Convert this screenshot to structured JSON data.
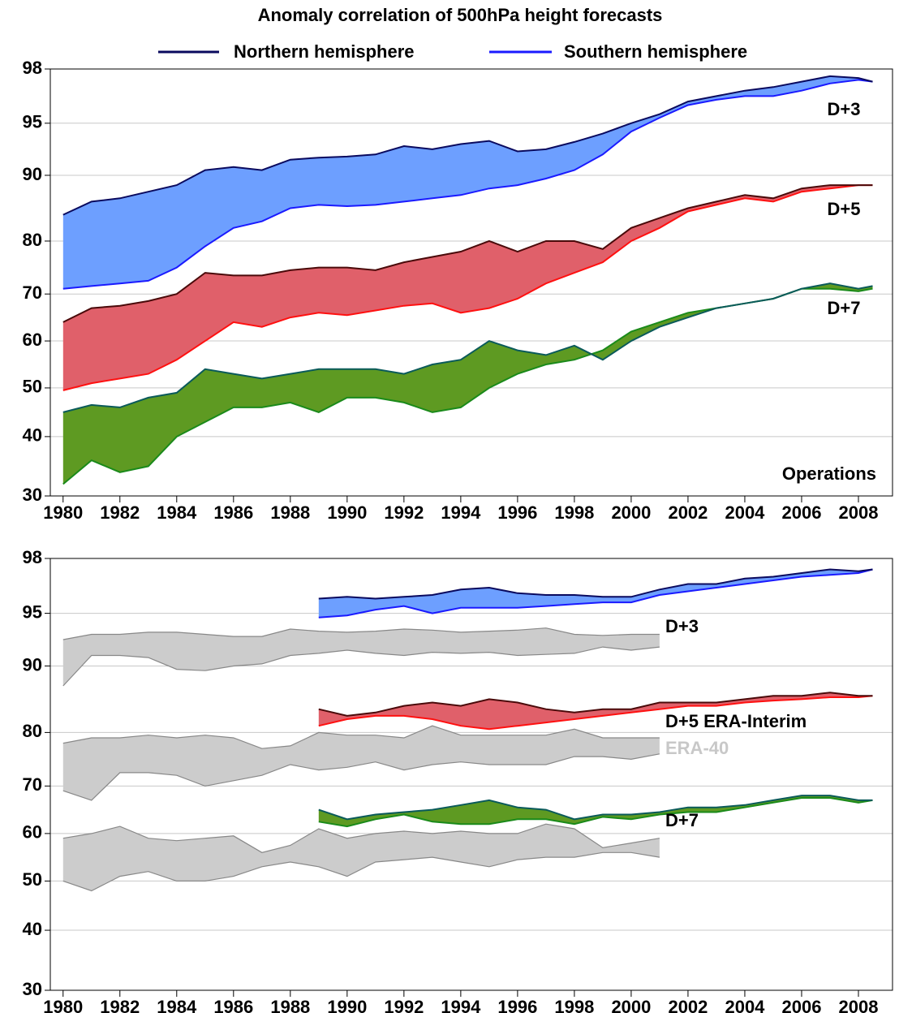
{
  "chart_data": [
    {
      "type": "band",
      "title": "Anomaly correlation of 500hPa height forecasts",
      "annotation": "Operations",
      "x": [
        1980,
        1981,
        1982,
        1983,
        1984,
        1985,
        1986,
        1987,
        1988,
        1989,
        1990,
        1991,
        1992,
        1993,
        1994,
        1995,
        1996,
        1997,
        1998,
        1999,
        2000,
        2001,
        2002,
        2003,
        2004,
        2005,
        2006,
        2007,
        2008,
        2008.5
      ],
      "xlim": [
        1979.55,
        2009.2
      ],
      "xticks": [
        1980,
        1982,
        1984,
        1986,
        1988,
        1990,
        1992,
        1994,
        1996,
        1998,
        2000,
        2002,
        2004,
        2006,
        2008
      ],
      "ylim": [
        30,
        98
      ],
      "yticks": [
        30,
        40,
        50,
        60,
        70,
        80,
        90,
        95,
        98
      ],
      "grid": true,
      "bands": [
        {
          "label": "D+3",
          "fill": "#6d9fff",
          "upper": {
            "name": "Northern hemisphere",
            "color": "#0a0a5e",
            "values": [
              84,
              86,
              86.5,
              87.5,
              88.5,
              90.5,
              90.8,
              90.5,
              91.5,
              91.7,
              91.8,
              92,
              92.8,
              92.5,
              93,
              93.3,
              92.3,
              92.5,
              93.2,
              94,
              95,
              95.5,
              96.2,
              96.5,
              96.8,
              97,
              97.3,
              97.6,
              97.5,
              97.3
            ]
          },
          "lower": {
            "name": "Southern hemisphere",
            "color": "#1a1aff",
            "values": [
              71,
              71.5,
              72,
              72.5,
              75,
              79,
              82,
              83,
              85,
              85.5,
              85.3,
              85.5,
              86,
              86.5,
              87,
              88,
              88.5,
              89.5,
              90.5,
              92,
              94.2,
              95.3,
              96,
              96.3,
              96.5,
              96.5,
              96.8,
              97.2,
              97.4,
              97.3
            ]
          }
        },
        {
          "label": "D+5",
          "fill": "#e0606a",
          "upper": {
            "color": "#4a0a0a",
            "values": [
              64,
              67,
              67.5,
              68.5,
              70,
              74,
              73.5,
              73.5,
              74.5,
              75,
              75,
              74.5,
              76,
              77,
              78,
              80,
              78,
              80,
              80,
              78.5,
              82,
              83.5,
              85,
              86,
              87,
              86.5,
              88,
              88.5,
              88.5,
              88.5
            ]
          },
          "lower": {
            "color": "#ff1010",
            "values": [
              49.5,
              51,
              52,
              53,
              56,
              60,
              64,
              63,
              65,
              66,
              65.5,
              66.5,
              67.5,
              68,
              66,
              67,
              69,
              72,
              74,
              76,
              80,
              82,
              84.5,
              85.5,
              86.5,
              86,
              87.5,
              88,
              88.5,
              88.5
            ]
          }
        },
        {
          "label": "D+7",
          "fill": "#5e9a22",
          "upper": {
            "color": "#0a5a5a",
            "values": [
              45,
              46.5,
              46,
              48,
              49,
              54,
              53,
              52,
              53,
              54,
              54,
              54,
              53,
              55,
              56,
              60,
              58,
              57,
              59,
              56,
              60,
              63,
              65,
              67,
              68,
              69,
              71,
              72,
              71,
              71.5
            ]
          },
          "lower": {
            "color": "#1a8a1a",
            "values": [
              32,
              36,
              34,
              35,
              40,
              43,
              46,
              46,
              47,
              45,
              48,
              48,
              47,
              45,
              46,
              50,
              53,
              55,
              56,
              58,
              62,
              64,
              66,
              67,
              68,
              69,
              71,
              71,
              70.5,
              71
            ]
          }
        }
      ]
    },
    {
      "type": "band",
      "annotation": "ERA-40",
      "annotation_color": "#c8c8c8",
      "x": [
        1980,
        1981,
        1982,
        1983,
        1984,
        1985,
        1986,
        1987,
        1988,
        1989,
        1990,
        1991,
        1992,
        1993,
        1994,
        1995,
        1996,
        1997,
        1998,
        1999,
        2000,
        2001,
        2002,
        2003,
        2004,
        2005,
        2006,
        2007,
        2008,
        2008.5
      ],
      "xlim": [
        1979.55,
        2009.2
      ],
      "xticks": [
        1980,
        1982,
        1984,
        1986,
        1988,
        1990,
        1992,
        1994,
        1996,
        1998,
        2000,
        2002,
        2004,
        2006,
        2008
      ],
      "ylim": [
        30,
        98
      ],
      "yticks": [
        30,
        40,
        50,
        60,
        70,
        80,
        90,
        95,
        98
      ],
      "grid": true,
      "bands": [
        {
          "fill": "#cccccc",
          "upper": {
            "color": "#888888",
            "values": [
              92.5,
              93,
              93,
              93.2,
              93.2,
              93,
              92.8,
              92.8,
              93.5,
              93.3,
              93.2,
              93.3,
              93.5,
              93.4,
              93.2,
              93.3,
              93.4,
              93.6,
              93,
              92.9,
              93,
              93,
              null,
              null,
              null,
              null,
              null,
              null,
              null,
              null
            ]
          },
          "lower": {
            "color": "#888888",
            "values": [
              87,
              91,
              91,
              90.8,
              89.5,
              89.3,
              90,
              90.2,
              91,
              91.2,
              91.5,
              91.2,
              91,
              91.3,
              91.2,
              91.3,
              91,
              91.1,
              91.2,
              91.8,
              91.5,
              91.8,
              null,
              null,
              null,
              null,
              null,
              null,
              null,
              null
            ]
          }
        },
        {
          "fill": "#cccccc",
          "upper": {
            "color": "#888888",
            "values": [
              78,
              79,
              79,
              79.5,
              79,
              79.5,
              79,
              77,
              77.5,
              80,
              79.5,
              79.5,
              79,
              81,
              79.5,
              79.5,
              79.5,
              79.5,
              80.5,
              79,
              79,
              79,
              null,
              null,
              null,
              null,
              null,
              null,
              null,
              null
            ]
          },
          "lower": {
            "color": "#888888",
            "values": [
              69,
              67,
              72.5,
              72.5,
              72,
              70,
              71,
              72,
              74,
              73,
              73.5,
              74.5,
              73,
              74,
              74.5,
              74,
              74,
              74,
              75.5,
              75.5,
              75,
              76,
              null,
              null,
              null,
              null,
              null,
              null,
              null,
              null
            ]
          }
        },
        {
          "fill": "#cccccc",
          "upper": {
            "color": "#888888",
            "values": [
              59,
              60,
              61.5,
              59,
              58.5,
              59,
              59.5,
              56,
              57.5,
              61,
              59,
              60,
              60.5,
              60,
              60.5,
              60,
              60,
              62,
              61,
              57,
              58,
              59,
              null,
              null,
              null,
              null,
              null,
              null,
              null,
              null
            ]
          },
          "lower": {
            "color": "#888888",
            "values": [
              50,
              48,
              51,
              52,
              50,
              50,
              51,
              53,
              54,
              53,
              51,
              54,
              54.5,
              55,
              54,
              53,
              54.5,
              55,
              55,
              56,
              56,
              55,
              null,
              null,
              null,
              null,
              null,
              null,
              null,
              null
            ]
          }
        },
        {
          "label": "D+3",
          "fill": "#6d9fff",
          "upper": {
            "color": "#0a0a5e",
            "values": [
              null,
              null,
              null,
              null,
              null,
              null,
              null,
              null,
              null,
              95.8,
              95.9,
              95.8,
              95.9,
              96.0,
              96.3,
              96.4,
              96.1,
              96.0,
              96.0,
              95.9,
              95.9,
              96.3,
              96.6,
              96.6,
              96.9,
              97.0,
              97.2,
              97.4,
              97.3,
              97.4
            ]
          },
          "lower": {
            "color": "#1a1aff",
            "values": [
              null,
              null,
              null,
              null,
              null,
              null,
              null,
              null,
              null,
              94.6,
              94.8,
              95.2,
              95.4,
              95.0,
              95.3,
              95.3,
              95.3,
              95.4,
              95.5,
              95.6,
              95.6,
              96.0,
              96.2,
              96.4,
              96.6,
              96.8,
              97.0,
              97.1,
              97.2,
              97.4
            ]
          }
        },
        {
          "label": "D+5 ERA-Interim",
          "fill": "#e0606a",
          "upper": {
            "color": "#4a0a0a",
            "values": [
              null,
              null,
              null,
              null,
              null,
              null,
              null,
              null,
              null,
              83.5,
              82.5,
              83,
              84,
              84.5,
              84,
              85,
              84.5,
              83.5,
              83,
              83.5,
              83.5,
              84.5,
              84.5,
              84.5,
              85,
              85.5,
              85.5,
              86,
              85.5,
              85.5
            ]
          },
          "lower": {
            "color": "#ff1010",
            "values": [
              null,
              null,
              null,
              null,
              null,
              null,
              null,
              null,
              null,
              81,
              82,
              82.5,
              82.5,
              82,
              81,
              80.5,
              81,
              81.5,
              82,
              82.5,
              83,
              83.5,
              84,
              84,
              84.5,
              84.8,
              85,
              85.3,
              85.3,
              85.5
            ]
          }
        },
        {
          "label": "D+7",
          "fill": "#5e9a22",
          "upper": {
            "color": "#0a5a5a",
            "values": [
              null,
              null,
              null,
              null,
              null,
              null,
              null,
              null,
              null,
              65,
              63,
              64,
              64.5,
              65,
              66,
              67,
              65.5,
              65,
              63,
              64,
              64,
              64.5,
              65.5,
              65.5,
              66,
              67,
              68,
              68,
              67,
              67
            ]
          },
          "lower": {
            "color": "#1a8a1a",
            "values": [
              null,
              null,
              null,
              null,
              null,
              null,
              null,
              null,
              null,
              62.5,
              61.5,
              63,
              64,
              62.5,
              62,
              62,
              63,
              63,
              62,
              63.5,
              63,
              64,
              64.5,
              64.5,
              65.5,
              66.5,
              67.5,
              67.5,
              66.5,
              67
            ]
          }
        }
      ]
    }
  ]
}
